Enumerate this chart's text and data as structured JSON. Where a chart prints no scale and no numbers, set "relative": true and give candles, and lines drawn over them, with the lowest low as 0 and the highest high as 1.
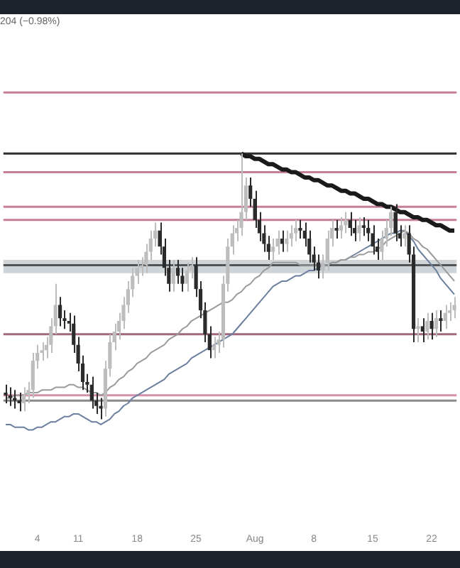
{
  "chart_data": {
    "type": "candlestick",
    "subtitle": "204 (−0.98%)",
    "relative": true,
    "colors": [
      "#2b2b2b",
      "#2b2b2b",
      "#2b2b2b",
      "#2b2b2b",
      "#bdbdbd",
      "#bdbdbd",
      "#bdbdbd",
      "#bdbdbd",
      "#bdbdbd",
      "#bdbdbd",
      "#bdbdbd",
      "#bdbdbd",
      "#2b2b2b",
      "#2b2b2b",
      "#2b2b2b",
      "#2b2b2b",
      "#2b2b2b",
      "#2b2b2b",
      "#2b2b2b",
      "#2b2b2b",
      "#2b2b2b",
      "#2b2b2b",
      "#bdbdbd",
      "#bdbdbd",
      "#bdbdbd",
      "#bdbdbd",
      "#bdbdbd",
      "#bdbdbd",
      "#bdbdbd",
      "#bdbdbd",
      "#bdbdbd",
      "#bdbdbd",
      "#bdbdbd",
      "#bdbdbd",
      "#2b2b2b",
      "#2b2b2b",
      "#2b2b2b",
      "#bdbdbd",
      "#2b2b2b",
      "#2b2b2b",
      "#bdbdbd",
      "#bdbdbd",
      "#2b2b2b",
      "#2b2b2b",
      "#2b2b2b",
      "#2b2b2b",
      "#bdbdbd",
      "#bdbdbd",
      "#bdbdbd",
      "#bdbdbd",
      "#bdbdbd",
      "#bdbdbd",
      "#bdbdbd",
      "#bdbdbd",
      "#2b2b2b",
      "#2b2b2b",
      "#2b2b2b",
      "#2b2b2b",
      "#2b2b2b",
      "#bdbdbd",
      "#bdbdbd",
      "#2b2b2b",
      "#bdbdbd",
      "#bdbdbd",
      "#bdbdbd",
      "#2b2b2b",
      "#2b2b2b",
      "#2b2b2b",
      "#2b2b2b",
      "#2b2b2b",
      "#bdbdbd",
      "#bdbdbd",
      "#bdbdbd",
      "#2b2b2b",
      "#bdbdbd",
      "#bdbdbd",
      "#2b2b2b",
      "#2b2b2b",
      "#bdbdbd",
      "#2b2b2b",
      "#2b2b2b",
      "#2b2b2b",
      "#2b2b2b",
      "#bdbdbd",
      "#bdbdbd",
      "#bdbdbd",
      "#2b2b2b",
      "#2b2b2b",
      "#bdbdbd",
      "#2b2b2b",
      "#2b2b2b",
      "#bdbdbd",
      "#2b2b2b",
      "#bdbdbd",
      "#2b2b2b",
      "#bdbdbd",
      "#2b2b2b",
      "#bdbdbd",
      "#bdbdbd",
      "#bdbdbd"
    ],
    "grid": false,
    "legend": false,
    "categories": [
      null,
      null,
      null,
      null,
      null,
      null,
      null,
      "4",
      null,
      null,
      null,
      null,
      null,
      null,
      null,
      null,
      "11",
      null,
      null,
      null,
      null,
      null,
      null,
      null,
      null,
      null,
      null,
      null,
      null,
      "18",
      null,
      null,
      null,
      null,
      null,
      null,
      null,
      null,
      null,
      null,
      null,
      null,
      "25",
      null,
      null,
      null,
      null,
      null,
      null,
      null,
      null,
      null,
      null,
      null,
      null,
      "Aug",
      null,
      null,
      null,
      null,
      null,
      null,
      null,
      null,
      null,
      null,
      null,
      null,
      "8",
      null,
      null,
      null,
      null,
      null,
      null,
      null,
      null,
      null,
      null,
      null,
      null,
      "15",
      null,
      null,
      null,
      null,
      null,
      null,
      null,
      null,
      null,
      null,
      null,
      null,
      "22",
      null,
      null,
      null,
      null,
      null
    ],
    "ohlc": [
      [
        0.1,
        0.13,
        0.06,
        0.09
      ],
      [
        0.09,
        0.12,
        0.05,
        0.08
      ],
      [
        0.08,
        0.11,
        0.04,
        0.07
      ],
      [
        0.07,
        0.1,
        0.03,
        0.06
      ],
      [
        0.06,
        0.12,
        0.03,
        0.09
      ],
      [
        0.09,
        0.14,
        0.06,
        0.11
      ],
      [
        0.11,
        0.25,
        0.08,
        0.22
      ],
      [
        0.22,
        0.28,
        0.19,
        0.25
      ],
      [
        0.25,
        0.29,
        0.22,
        0.26
      ],
      [
        0.26,
        0.31,
        0.23,
        0.28
      ],
      [
        0.28,
        0.38,
        0.25,
        0.35
      ],
      [
        0.35,
        0.51,
        0.32,
        0.43
      ],
      [
        0.43,
        0.46,
        0.35,
        0.38
      ],
      [
        0.38,
        0.41,
        0.34,
        0.37
      ],
      [
        0.37,
        0.4,
        0.33,
        0.36
      ],
      [
        0.36,
        0.39,
        0.25,
        0.28
      ],
      [
        0.28,
        0.31,
        0.18,
        0.21
      ],
      [
        0.21,
        0.24,
        0.11,
        0.14
      ],
      [
        0.14,
        0.17,
        0.1,
        0.13
      ],
      [
        0.13,
        0.16,
        0.04,
        0.07
      ],
      [
        0.07,
        0.1,
        0.02,
        0.05
      ],
      [
        0.05,
        0.08,
        0.0,
        0.04
      ],
      [
        0.04,
        0.22,
        0.01,
        0.19
      ],
      [
        0.19,
        0.32,
        0.16,
        0.29
      ],
      [
        0.29,
        0.36,
        0.26,
        0.33
      ],
      [
        0.33,
        0.4,
        0.3,
        0.37
      ],
      [
        0.37,
        0.46,
        0.34,
        0.43
      ],
      [
        0.43,
        0.52,
        0.4,
        0.49
      ],
      [
        0.49,
        0.57,
        0.46,
        0.54
      ],
      [
        0.54,
        0.6,
        0.51,
        0.57
      ],
      [
        0.57,
        0.61,
        0.54,
        0.58
      ],
      [
        0.58,
        0.66,
        0.55,
        0.63
      ],
      [
        0.63,
        0.71,
        0.6,
        0.68
      ],
      [
        0.68,
        0.74,
        0.65,
        0.71
      ],
      [
        0.71,
        0.74,
        0.62,
        0.65
      ],
      [
        0.65,
        0.68,
        0.54,
        0.57
      ],
      [
        0.57,
        0.6,
        0.48,
        0.51
      ],
      [
        0.51,
        0.6,
        0.48,
        0.57
      ],
      [
        0.57,
        0.6,
        0.51,
        0.54
      ],
      [
        0.54,
        0.57,
        0.48,
        0.51
      ],
      [
        0.51,
        0.59,
        0.48,
        0.56
      ],
      [
        0.56,
        0.61,
        0.53,
        0.58
      ],
      [
        0.58,
        0.61,
        0.46,
        0.49
      ],
      [
        0.49,
        0.52,
        0.38,
        0.41
      ],
      [
        0.41,
        0.44,
        0.29,
        0.32
      ],
      [
        0.32,
        0.35,
        0.23,
        0.26
      ],
      [
        0.26,
        0.31,
        0.23,
        0.28
      ],
      [
        0.28,
        0.33,
        0.25,
        0.3
      ],
      [
        0.3,
        0.54,
        0.27,
        0.51
      ],
      [
        0.51,
        0.68,
        0.48,
        0.65
      ],
      [
        0.65,
        0.73,
        0.62,
        0.7
      ],
      [
        0.7,
        0.75,
        0.67,
        0.72
      ],
      [
        0.72,
        1.0,
        0.69,
        0.78
      ],
      [
        0.78,
        0.91,
        0.75,
        0.88
      ],
      [
        0.88,
        0.91,
        0.8,
        0.83
      ],
      [
        0.83,
        0.86,
        0.72,
        0.75
      ],
      [
        0.75,
        0.78,
        0.67,
        0.7
      ],
      [
        0.7,
        0.73,
        0.63,
        0.66
      ],
      [
        0.66,
        0.69,
        0.6,
        0.63
      ],
      [
        0.63,
        0.68,
        0.6,
        0.65
      ],
      [
        0.65,
        0.71,
        0.62,
        0.68
      ],
      [
        0.68,
        0.71,
        0.63,
        0.66
      ],
      [
        0.66,
        0.71,
        0.63,
        0.68
      ],
      [
        0.68,
        0.73,
        0.65,
        0.7
      ],
      [
        0.7,
        0.75,
        0.67,
        0.72
      ],
      [
        0.72,
        0.75,
        0.68,
        0.71
      ],
      [
        0.71,
        0.74,
        0.65,
        0.68
      ],
      [
        0.68,
        0.71,
        0.59,
        0.62
      ],
      [
        0.62,
        0.65,
        0.56,
        0.59
      ],
      [
        0.59,
        0.62,
        0.53,
        0.56
      ],
      [
        0.56,
        0.62,
        0.53,
        0.59
      ],
      [
        0.59,
        0.71,
        0.56,
        0.68
      ],
      [
        0.68,
        0.75,
        0.65,
        0.72
      ],
      [
        0.72,
        0.75,
        0.68,
        0.71
      ],
      [
        0.71,
        0.76,
        0.68,
        0.73
      ],
      [
        0.73,
        0.78,
        0.7,
        0.75
      ],
      [
        0.75,
        0.78,
        0.69,
        0.72
      ],
      [
        0.72,
        0.75,
        0.67,
        0.7
      ],
      [
        0.7,
        0.76,
        0.67,
        0.73
      ],
      [
        0.73,
        0.76,
        0.69,
        0.72
      ],
      [
        0.72,
        0.75,
        0.67,
        0.7
      ],
      [
        0.7,
        0.73,
        0.62,
        0.65
      ],
      [
        0.65,
        0.68,
        0.6,
        0.63
      ],
      [
        0.63,
        0.71,
        0.6,
        0.68
      ],
      [
        0.68,
        0.75,
        0.65,
        0.72
      ],
      [
        0.72,
        0.8,
        0.69,
        0.78
      ],
      [
        0.78,
        0.81,
        0.67,
        0.7
      ],
      [
        0.7,
        0.73,
        0.65,
        0.68
      ],
      [
        0.68,
        0.73,
        0.65,
        0.7
      ],
      [
        0.7,
        0.73,
        0.59,
        0.62
      ],
      [
        0.62,
        0.65,
        0.29,
        0.34
      ],
      [
        0.34,
        0.38,
        0.29,
        0.35
      ],
      [
        0.35,
        0.38,
        0.29,
        0.33
      ],
      [
        0.33,
        0.4,
        0.3,
        0.37
      ],
      [
        0.37,
        0.4,
        0.3,
        0.34
      ],
      [
        0.34,
        0.41,
        0.31,
        0.38
      ],
      [
        0.38,
        0.41,
        0.33,
        0.37
      ],
      [
        0.37,
        0.43,
        0.34,
        0.4
      ],
      [
        0.4,
        0.44,
        0.37,
        0.41
      ],
      [
        0.41,
        0.46,
        0.38,
        0.43
      ]
    ],
    "series": [
      {
        "type": "line",
        "color": "#9a9a9a",
        "values": [
          0.08,
          0.08,
          0.09,
          0.09,
          0.09,
          0.1,
          0.1,
          0.1,
          0.11,
          0.11,
          0.11,
          0.12,
          0.12,
          0.12,
          0.13,
          0.13,
          0.12,
          0.12,
          0.11,
          0.1,
          0.1,
          0.09,
          0.1,
          0.12,
          0.13,
          0.15,
          0.16,
          0.18,
          0.19,
          0.21,
          0.22,
          0.23,
          0.25,
          0.26,
          0.27,
          0.28,
          0.3,
          0.31,
          0.32,
          0.34,
          0.35,
          0.37,
          0.38,
          0.39,
          0.4,
          0.41,
          0.42,
          0.43,
          0.44,
          0.44,
          0.45,
          0.47,
          0.48,
          0.5,
          0.51,
          0.53,
          0.54,
          0.56,
          0.57,
          0.59,
          0.59,
          0.59,
          0.59,
          0.59,
          0.59,
          0.58,
          0.58,
          0.58,
          0.58,
          0.58,
          0.58,
          0.58,
          0.59,
          0.59,
          0.6,
          0.6,
          0.61,
          0.61,
          0.62,
          0.62,
          0.63,
          0.63,
          0.64,
          0.65,
          0.67,
          0.68,
          0.69,
          0.7,
          0.71,
          0.7,
          0.68,
          0.67,
          0.65,
          0.64,
          0.62,
          0.6,
          0.58,
          0.56,
          0.54,
          0.52
        ]
      },
      {
        "type": "line",
        "color": "#6c7f9e",
        "values": [
          -0.02,
          -0.02,
          -0.03,
          -0.03,
          -0.03,
          -0.04,
          -0.04,
          -0.03,
          -0.03,
          -0.02,
          -0.01,
          -0.01,
          0.0,
          0.01,
          0.01,
          0.02,
          0.02,
          0.01,
          0.0,
          -0.01,
          -0.01,
          -0.02,
          -0.01,
          0.0,
          0.02,
          0.03,
          0.05,
          0.06,
          0.08,
          0.09,
          0.1,
          0.11,
          0.12,
          0.13,
          0.14,
          0.15,
          0.17,
          0.18,
          0.19,
          0.2,
          0.21,
          0.23,
          0.24,
          0.25,
          0.26,
          0.27,
          0.28,
          0.29,
          0.3,
          0.31,
          0.32,
          0.34,
          0.36,
          0.38,
          0.4,
          0.42,
          0.44,
          0.46,
          0.48,
          0.5,
          0.51,
          0.52,
          0.52,
          0.53,
          0.54,
          0.54,
          0.55,
          0.56,
          0.56,
          0.57,
          0.58,
          0.58,
          0.59,
          0.59,
          0.6,
          0.6,
          0.61,
          0.62,
          0.63,
          0.64,
          0.65,
          0.66,
          0.67,
          0.68,
          0.69,
          0.7,
          0.7,
          0.71,
          0.71,
          0.69,
          0.67,
          0.64,
          0.62,
          0.6,
          0.58,
          0.56,
          0.53,
          0.51,
          0.49,
          0.47
        ]
      },
      {
        "type": "line",
        "color": "#1a1a1a",
        "values": [
          null,
          null,
          null,
          null,
          null,
          null,
          null,
          null,
          null,
          null,
          null,
          null,
          null,
          null,
          null,
          null,
          null,
          null,
          null,
          null,
          null,
          null,
          null,
          null,
          null,
          null,
          null,
          null,
          null,
          null,
          null,
          null,
          null,
          null,
          null,
          null,
          null,
          null,
          null,
          null,
          null,
          null,
          null,
          null,
          null,
          null,
          null,
          null,
          null,
          null,
          null,
          null,
          1.0,
          0.99,
          0.99,
          0.98,
          0.98,
          0.97,
          0.96,
          0.96,
          0.95,
          0.94,
          0.94,
          0.93,
          0.93,
          0.92,
          0.91,
          0.91,
          0.9,
          0.9,
          0.89,
          0.88,
          0.88,
          0.87,
          0.86,
          0.86,
          0.85,
          0.85,
          0.84,
          0.83,
          0.83,
          0.82,
          0.81,
          0.81,
          0.8,
          0.8,
          0.79,
          0.78,
          0.78,
          0.77,
          0.76,
          0.76,
          0.75,
          0.75,
          0.74,
          0.73,
          0.73,
          0.72,
          0.71,
          0.71
        ]
      }
    ],
    "ref_lines": [
      {
        "axis": "y",
        "value": 1.23,
        "color": "#c57f99"
      },
      {
        "axis": "y",
        "value": 1.0,
        "color": "#2e2e2e"
      },
      {
        "axis": "y",
        "value": 0.93,
        "color": "#c57f99"
      },
      {
        "axis": "y",
        "value": 0.8,
        "color": "#c57f99"
      },
      {
        "axis": "y",
        "value": 0.75,
        "color": "#c57f99"
      },
      {
        "axis": "y",
        "value": 0.58,
        "color": "#555555"
      },
      {
        "axis": "y",
        "value": 0.32,
        "color": "#a0677e"
      },
      {
        "axis": "y",
        "value": 0.09,
        "color": "#d48fa8"
      },
      {
        "axis": "y",
        "value": 0.07,
        "color": "#8a8a8a"
      }
    ],
    "bands": [
      {
        "axis": "y",
        "from": 0.55,
        "to": 0.6,
        "color": "#cfd4d8"
      }
    ]
  }
}
